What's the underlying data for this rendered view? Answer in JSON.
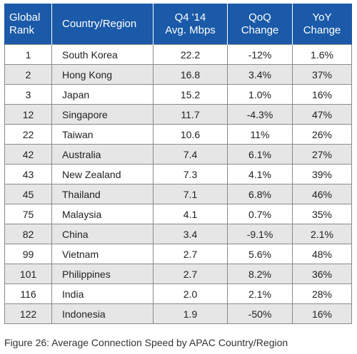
{
  "chart_data": {
    "type": "table",
    "columns": [
      [
        "Global",
        "Rank"
      ],
      [
        "Country/Region"
      ],
      [
        "Q4 '14",
        "Avg. Mbps"
      ],
      [
        "QoQ",
        "Change"
      ],
      [
        "YoY",
        "Change"
      ]
    ],
    "rows": [
      [
        "1",
        "South Korea",
        "22.2",
        "-12%",
        "1.6%"
      ],
      [
        "2",
        "Hong Kong",
        "16.8",
        "3.4%",
        "37%"
      ],
      [
        "3",
        "Japan",
        "15.2",
        "1.0%",
        "16%"
      ],
      [
        "12",
        "Singapore",
        "11.7",
        "-4.3%",
        "47%"
      ],
      [
        "22",
        "Taiwan",
        "10.6",
        "11%",
        "26%"
      ],
      [
        "42",
        "Australia",
        "7.4",
        "6.1%",
        "27%"
      ],
      [
        "43",
        "New Zealand",
        "7.3",
        "4.1%",
        "39%"
      ],
      [
        "45",
        "Thailand",
        "7.1",
        "6.8%",
        "46%"
      ],
      [
        "75",
        "Malaysia",
        "4.1",
        "0.7%",
        "35%"
      ],
      [
        "82",
        "China",
        "3.4",
        "-9.1%",
        "2.1%"
      ],
      [
        "99",
        "Vietnam",
        "2.7",
        "5.6%",
        "48%"
      ],
      [
        "101",
        "Philippines",
        "2.7",
        "8.2%",
        "36%"
      ],
      [
        "116",
        "India",
        "2.0",
        "2.1%",
        "28%"
      ],
      [
        "122",
        "Indonesia",
        "1.9",
        "-50%",
        "16%"
      ]
    ],
    "header_color": "#1a5aa8",
    "stripe_color": "#e6e6e6"
  },
  "caption": "Figure 26: Average Connection Speed by APAC Country/Region"
}
